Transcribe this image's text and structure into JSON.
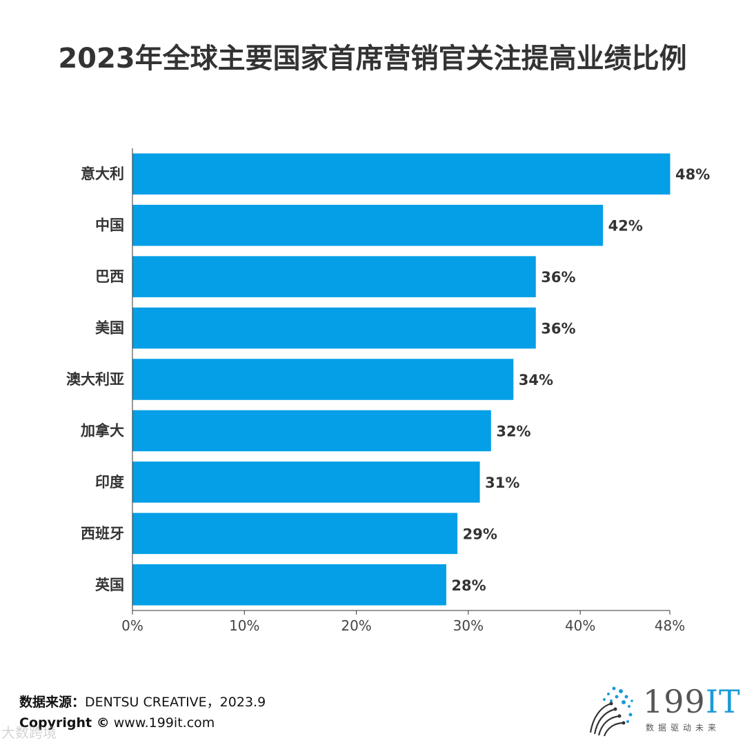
{
  "chart_data": {
    "type": "bar",
    "orientation": "horizontal",
    "title": "2023年全球主要国家首席营销官关注提高业绩比例",
    "categories": [
      "意大利",
      "中国",
      "巴西",
      "美国",
      "澳大利亚",
      "加拿大",
      "印度",
      "西班牙",
      "英国"
    ],
    "values": [
      48,
      42,
      36,
      36,
      34,
      32,
      31,
      29,
      28
    ],
    "value_labels": [
      "48%",
      "42%",
      "36%",
      "36%",
      "34%",
      "32%",
      "31%",
      "29%",
      "28%"
    ],
    "x_ticks": [
      0,
      10,
      20,
      30,
      40,
      48
    ],
    "x_tick_labels": [
      "0%",
      "10%",
      "20%",
      "30%",
      "40%",
      "48%"
    ],
    "xlim": [
      0,
      48
    ],
    "bar_color": "#049fe6",
    "grid": false
  },
  "footer": {
    "source_label": "数据来源：",
    "source_text": "DENTSU CREATIVE，2023.9",
    "copyright_label": "Copyright ©",
    "copyright_url": "www.199it.com"
  },
  "watermark": "大数跨境",
  "logo": {
    "brand_num": "199",
    "brand_it": "IT",
    "slogan": "数据驱动未来",
    "icon": "dot-globe-icon"
  }
}
